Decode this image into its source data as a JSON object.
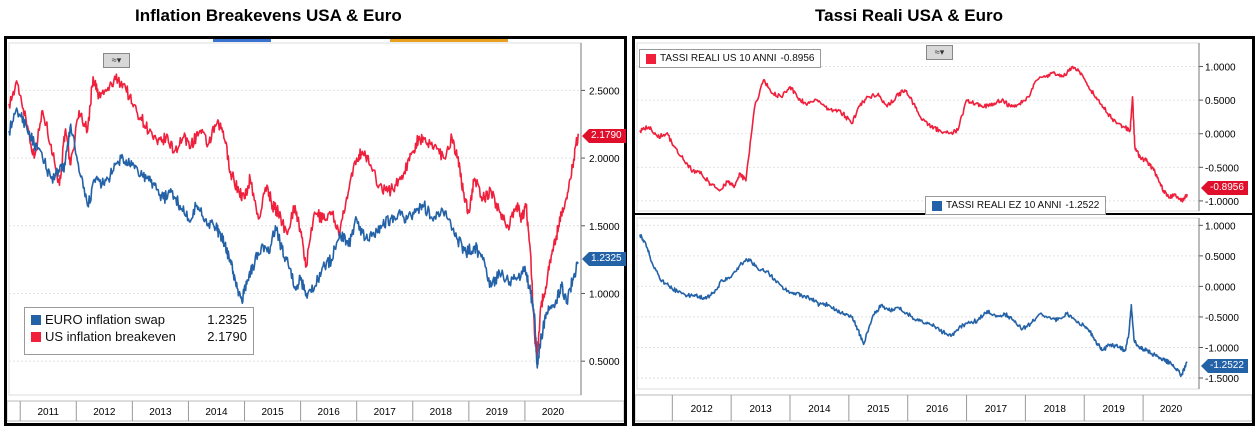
{
  "chart_data": [
    {
      "type": "line",
      "title": "Inflation Breakevens USA & Euro",
      "x_ticks": [
        "2011",
        "2012",
        "2013",
        "2014",
        "2015",
        "2016",
        "2017",
        "2018",
        "2019",
        "2020"
      ],
      "y_ticks": [
        "0.5000",
        "1.0000",
        "1.5000",
        "2.0000",
        "2.5000"
      ],
      "ylim": [
        0.25,
        2.85
      ],
      "xlim": [
        2010.8,
        2021.0
      ],
      "series": [
        {
          "name": "US inflation breakeven",
          "color": "#f0203c",
          "last": "2.1790",
          "x": [
            2010.8,
            2010.95,
            2011.1,
            2011.25,
            2011.4,
            2011.55,
            2011.7,
            2011.8,
            2011.9,
            2012.05,
            2012.2,
            2012.3,
            2012.4,
            2012.55,
            2012.7,
            2012.85,
            2013.0,
            2013.15,
            2013.3,
            2013.45,
            2013.6,
            2013.75,
            2013.9,
            2014.05,
            2014.2,
            2014.35,
            2014.5,
            2014.62,
            2014.75,
            2014.9,
            2015.0,
            2015.1,
            2015.25,
            2015.4,
            2015.5,
            2015.6,
            2015.75,
            2015.9,
            2016.0,
            2016.1,
            2016.25,
            2016.4,
            2016.55,
            2016.7,
            2016.85,
            2017.0,
            2017.1,
            2017.25,
            2017.4,
            2017.55,
            2017.7,
            2017.85,
            2018.0,
            2018.1,
            2018.25,
            2018.4,
            2018.55,
            2018.7,
            2018.8,
            2018.9,
            2019.0,
            2019.1,
            2019.25,
            2019.4,
            2019.55,
            2019.7,
            2019.85,
            2019.95,
            2020.02,
            2020.1,
            2020.17,
            2020.22,
            2020.28,
            2020.35,
            2020.45,
            2020.55,
            2020.65,
            2020.75,
            2020.85,
            2020.95
          ],
          "y": [
            2.4,
            2.55,
            2.3,
            2.0,
            2.35,
            2.1,
            1.8,
            2.2,
            1.95,
            2.35,
            2.2,
            2.6,
            2.45,
            2.5,
            2.58,
            2.55,
            2.4,
            2.3,
            2.2,
            2.1,
            2.15,
            2.05,
            2.15,
            2.1,
            2.2,
            2.1,
            2.25,
            2.2,
            1.9,
            1.75,
            1.7,
            1.85,
            1.55,
            1.8,
            1.65,
            1.6,
            1.45,
            1.65,
            1.45,
            1.2,
            1.6,
            1.55,
            1.6,
            1.45,
            1.75,
            2.0,
            2.05,
            1.95,
            1.8,
            1.75,
            1.8,
            1.9,
            2.05,
            2.15,
            2.1,
            2.1,
            2.0,
            2.15,
            2.0,
            1.75,
            1.6,
            1.85,
            1.7,
            1.75,
            1.6,
            1.5,
            1.65,
            1.55,
            1.65,
            1.3,
            0.7,
            0.55,
            0.9,
            1.0,
            1.25,
            1.4,
            1.6,
            1.7,
            1.95,
            2.18
          ]
        },
        {
          "name": "EURO inflation swap",
          "color": "#2462a8",
          "last": "1.2325",
          "x": [
            2010.8,
            2010.95,
            2011.1,
            2011.25,
            2011.4,
            2011.55,
            2011.7,
            2011.8,
            2011.9,
            2012.05,
            2012.2,
            2012.35,
            2012.5,
            2012.65,
            2012.8,
            2012.95,
            2013.1,
            2013.25,
            2013.4,
            2013.55,
            2013.7,
            2013.85,
            2014.0,
            2014.15,
            2014.3,
            2014.45,
            2014.55,
            2014.65,
            2014.75,
            2014.85,
            2014.95,
            2015.05,
            2015.15,
            2015.3,
            2015.45,
            2015.55,
            2015.65,
            2015.75,
            2015.9,
            2016.0,
            2016.1,
            2016.25,
            2016.4,
            2016.55,
            2016.7,
            2016.85,
            2017.0,
            2017.15,
            2017.3,
            2017.45,
            2017.6,
            2017.75,
            2017.9,
            2018.05,
            2018.2,
            2018.35,
            2018.5,
            2018.65,
            2018.8,
            2018.95,
            2019.1,
            2019.25,
            2019.4,
            2019.55,
            2019.7,
            2019.85,
            2020.0,
            2020.1,
            2020.17,
            2020.22,
            2020.28,
            2020.35,
            2020.45,
            2020.55,
            2020.65,
            2020.75,
            2020.85,
            2020.95
          ],
          "y": [
            2.2,
            2.35,
            2.25,
            2.1,
            2.0,
            1.85,
            1.9,
            1.95,
            2.25,
            1.9,
            1.65,
            1.85,
            1.8,
            1.9,
            2.0,
            1.95,
            1.9,
            1.85,
            1.8,
            1.7,
            1.75,
            1.65,
            1.55,
            1.65,
            1.55,
            1.5,
            1.45,
            1.35,
            1.25,
            1.05,
            0.95,
            1.1,
            1.2,
            1.35,
            1.3,
            1.5,
            1.35,
            1.25,
            1.05,
            1.1,
            1.0,
            1.05,
            1.2,
            1.25,
            1.45,
            1.35,
            1.55,
            1.4,
            1.45,
            1.5,
            1.55,
            1.6,
            1.55,
            1.6,
            1.65,
            1.55,
            1.6,
            1.55,
            1.4,
            1.3,
            1.35,
            1.25,
            1.05,
            1.15,
            1.1,
            1.1,
            1.2,
            1.0,
            0.85,
            0.45,
            0.65,
            0.8,
            0.9,
            0.95,
            1.05,
            0.95,
            1.1,
            1.23
          ]
        }
      ]
    },
    {
      "type": "line",
      "title": "Tassi Reali USA & Euro",
      "panels": [
        {
          "name": "TASSI REALI US 10 ANNI",
          "color": "#f0203c",
          "last": "-0.8956",
          "y_ticks": [
            "1.0000",
            "0.5000",
            "0.0000",
            "-0.5000",
            "-1.0000"
          ],
          "ylim": [
            -1.15,
            1.35
          ],
          "x": [
            2011.45,
            2011.6,
            2011.75,
            2011.9,
            2012.05,
            2012.2,
            2012.35,
            2012.5,
            2012.65,
            2012.8,
            2012.95,
            2013.05,
            2013.15,
            2013.25,
            2013.4,
            2013.55,
            2013.7,
            2013.85,
            2014.0,
            2014.15,
            2014.3,
            2014.45,
            2014.6,
            2014.75,
            2014.9,
            2015.05,
            2015.2,
            2015.35,
            2015.5,
            2015.65,
            2015.8,
            2015.95,
            2016.1,
            2016.25,
            2016.4,
            2016.55,
            2016.7,
            2016.85,
            2017.0,
            2017.15,
            2017.3,
            2017.45,
            2017.6,
            2017.75,
            2017.9,
            2018.05,
            2018.2,
            2018.35,
            2018.5,
            2018.65,
            2018.8,
            2018.95,
            2019.1,
            2019.25,
            2019.4,
            2019.55,
            2019.7,
            2019.78,
            2019.82,
            2019.86,
            2019.95,
            2020.05,
            2020.15,
            2020.25,
            2020.35,
            2020.45,
            2020.55,
            2020.65,
            2020.75
          ],
          "y": [
            0.05,
            0.1,
            -0.05,
            0.0,
            -0.2,
            -0.4,
            -0.55,
            -0.6,
            -0.75,
            -0.85,
            -0.7,
            -0.8,
            -0.6,
            -0.7,
            0.4,
            0.8,
            0.6,
            0.55,
            0.7,
            0.5,
            0.45,
            0.5,
            0.4,
            0.35,
            0.3,
            0.15,
            0.45,
            0.55,
            0.6,
            0.4,
            0.55,
            0.65,
            0.45,
            0.2,
            0.1,
            0.05,
            0.0,
            0.05,
            0.5,
            0.45,
            0.4,
            0.45,
            0.5,
            0.4,
            0.45,
            0.55,
            0.8,
            0.85,
            0.9,
            0.85,
            1.0,
            0.9,
            0.65,
            0.5,
            0.3,
            0.15,
            0.1,
            0.05,
            0.55,
            -0.2,
            -0.35,
            -0.4,
            -0.5,
            -0.65,
            -0.85,
            -0.95,
            -0.9,
            -1.0,
            -0.9
          ]
        },
        {
          "name": "TASSI REALI EZ 10 ANNI",
          "color": "#2462a8",
          "last": "-1.2522",
          "y_ticks": [
            "1.0000",
            "0.5000",
            "0.0000",
            "-0.5000",
            "-1.0000",
            "-1.5000"
          ],
          "ylim": [
            -1.68,
            1.12
          ],
          "x": [
            2011.45,
            2011.55,
            2011.65,
            2011.8,
            2011.95,
            2012.1,
            2012.25,
            2012.4,
            2012.55,
            2012.7,
            2012.85,
            2013.0,
            2013.15,
            2013.3,
            2013.45,
            2013.6,
            2013.75,
            2013.9,
            2014.05,
            2014.2,
            2014.35,
            2014.5,
            2014.65,
            2014.8,
            2014.95,
            2015.05,
            2015.15,
            2015.25,
            2015.4,
            2015.55,
            2015.7,
            2015.85,
            2016.0,
            2016.15,
            2016.3,
            2016.45,
            2016.6,
            2016.75,
            2016.9,
            2017.05,
            2017.2,
            2017.35,
            2017.5,
            2017.65,
            2017.8,
            2017.95,
            2018.1,
            2018.25,
            2018.4,
            2018.55,
            2018.7,
            2018.85,
            2019.0,
            2019.1,
            2019.2,
            2019.3,
            2019.45,
            2019.6,
            2019.7,
            2019.76,
            2019.8,
            2019.85,
            2019.95,
            2020.05,
            2020.15,
            2020.25,
            2020.35,
            2020.45,
            2020.55,
            2020.65,
            2020.75
          ],
          "y": [
            0.85,
            0.7,
            0.4,
            0.1,
            0.0,
            -0.1,
            -0.15,
            -0.15,
            -0.2,
            -0.1,
            0.1,
            0.15,
            0.35,
            0.45,
            0.3,
            0.25,
            0.1,
            -0.05,
            -0.1,
            -0.15,
            -0.2,
            -0.3,
            -0.3,
            -0.4,
            -0.45,
            -0.5,
            -0.7,
            -0.95,
            -0.5,
            -0.3,
            -0.4,
            -0.35,
            -0.45,
            -0.55,
            -0.6,
            -0.65,
            -0.75,
            -0.8,
            -0.65,
            -0.6,
            -0.55,
            -0.4,
            -0.5,
            -0.45,
            -0.55,
            -0.7,
            -0.6,
            -0.45,
            -0.5,
            -0.55,
            -0.45,
            -0.55,
            -0.65,
            -0.75,
            -0.9,
            -1.05,
            -0.95,
            -1.0,
            -1.05,
            -0.75,
            -0.3,
            -0.9,
            -1.0,
            -1.05,
            -1.1,
            -1.15,
            -1.2,
            -1.25,
            -1.35,
            -1.45,
            -1.25
          ]
        }
      ],
      "x_ticks": [
        "2012",
        "2013",
        "2014",
        "2015",
        "2016",
        "2017",
        "2018",
        "2019",
        "2020"
      ],
      "xlim": [
        2011.4,
        2020.95
      ]
    }
  ]
}
